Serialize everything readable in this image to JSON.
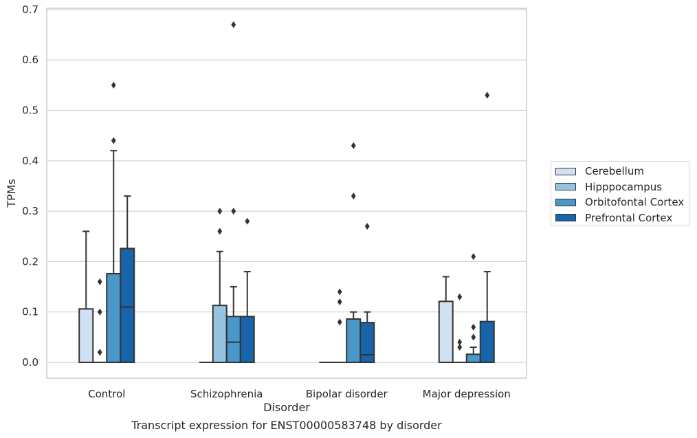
{
  "caption": "Transcript expression for ENST00000583748 by disorder",
  "chart_data": {
    "type": "box",
    "xlabel": "Disorder",
    "ylabel": "TPMs",
    "ylim": [
      -0.031,
      0.705
    ],
    "yticks": [
      0.0,
      0.1,
      0.2,
      0.3,
      0.4,
      0.5,
      0.6,
      0.7
    ],
    "ytick_labels": [
      "0.0",
      "0.1",
      "0.2",
      "0.3",
      "0.4",
      "0.5",
      "0.6",
      "0.7"
    ],
    "grid": "horizontal",
    "legend_position": "right",
    "categories": [
      "Control",
      "Schizophrenia",
      "Bipolar disorder",
      "Major depression"
    ],
    "series": [
      {
        "name": "Cerebellum",
        "color": "#d0e1f2",
        "boxes": [
          {
            "whislo": 0.0,
            "q1": 0.0,
            "med": 0.0,
            "q3": 0.106,
            "whishi": 0.26,
            "fliers": []
          },
          {
            "whislo": 0.0,
            "q1": 0.0,
            "med": 0.0,
            "q3": 0.0,
            "whishi": 0.0,
            "fliers": []
          },
          {
            "whislo": 0.0,
            "q1": 0.0,
            "med": 0.0,
            "q3": 0.0,
            "whishi": 0.0,
            "fliers": []
          },
          {
            "whislo": 0.0,
            "q1": 0.0,
            "med": 0.0,
            "q3": 0.121,
            "whishi": 0.17,
            "fliers": []
          }
        ]
      },
      {
        "name": "Hipppocampus",
        "color": "#94c4df",
        "boxes": [
          {
            "whislo": 0.0,
            "q1": 0.0,
            "med": 0.0,
            "q3": 0.0,
            "whishi": 0.0,
            "fliers": [
              0.02,
              0.1,
              0.16
            ]
          },
          {
            "whislo": 0.0,
            "q1": 0.0,
            "med": 0.0,
            "q3": 0.113,
            "whishi": 0.22,
            "fliers": [
              0.26,
              0.3
            ]
          },
          {
            "whislo": 0.0,
            "q1": 0.0,
            "med": 0.0,
            "q3": 0.0,
            "whishi": 0.0,
            "fliers": [
              0.08,
              0.12,
              0.14
            ]
          },
          {
            "whislo": 0.0,
            "q1": 0.0,
            "med": 0.0,
            "q3": 0.0,
            "whishi": 0.0,
            "fliers": [
              0.03,
              0.04,
              0.13
            ]
          }
        ]
      },
      {
        "name": "Orbitofontal Cortex",
        "color": "#4a98c9",
        "boxes": [
          {
            "whislo": 0.0,
            "q1": 0.0,
            "med": 0.0,
            "q3": 0.176,
            "whishi": 0.42,
            "fliers": [
              0.44,
              0.55
            ]
          },
          {
            "whislo": 0.0,
            "q1": 0.0,
            "med": 0.04,
            "q3": 0.091,
            "whishi": 0.15,
            "fliers": [
              0.3,
              0.67
            ]
          },
          {
            "whislo": 0.0,
            "q1": 0.0,
            "med": 0.0,
            "q3": 0.086,
            "whishi": 0.1,
            "fliers": [
              0.33,
              0.43
            ]
          },
          {
            "whislo": 0.0,
            "q1": 0.0,
            "med": 0.0,
            "q3": 0.016,
            "whishi": 0.03,
            "fliers": [
              0.05,
              0.07,
              0.21
            ]
          }
        ]
      },
      {
        "name": "Prefrontal Cortex",
        "color": "#1764ab",
        "boxes": [
          {
            "whislo": 0.0,
            "q1": 0.0,
            "med": 0.11,
            "q3": 0.226,
            "whishi": 0.33,
            "fliers": []
          },
          {
            "whislo": 0.0,
            "q1": 0.0,
            "med": 0.0,
            "q3": 0.091,
            "whishi": 0.18,
            "fliers": [
              0.28
            ]
          },
          {
            "whislo": 0.0,
            "q1": 0.0,
            "med": 0.015,
            "q3": 0.079,
            "whishi": 0.1,
            "fliers": [
              0.27
            ]
          },
          {
            "whislo": 0.0,
            "q1": 0.0,
            "med": 0.0,
            "q3": 0.081,
            "whishi": 0.18,
            "fliers": [
              0.53
            ]
          }
        ]
      }
    ]
  }
}
